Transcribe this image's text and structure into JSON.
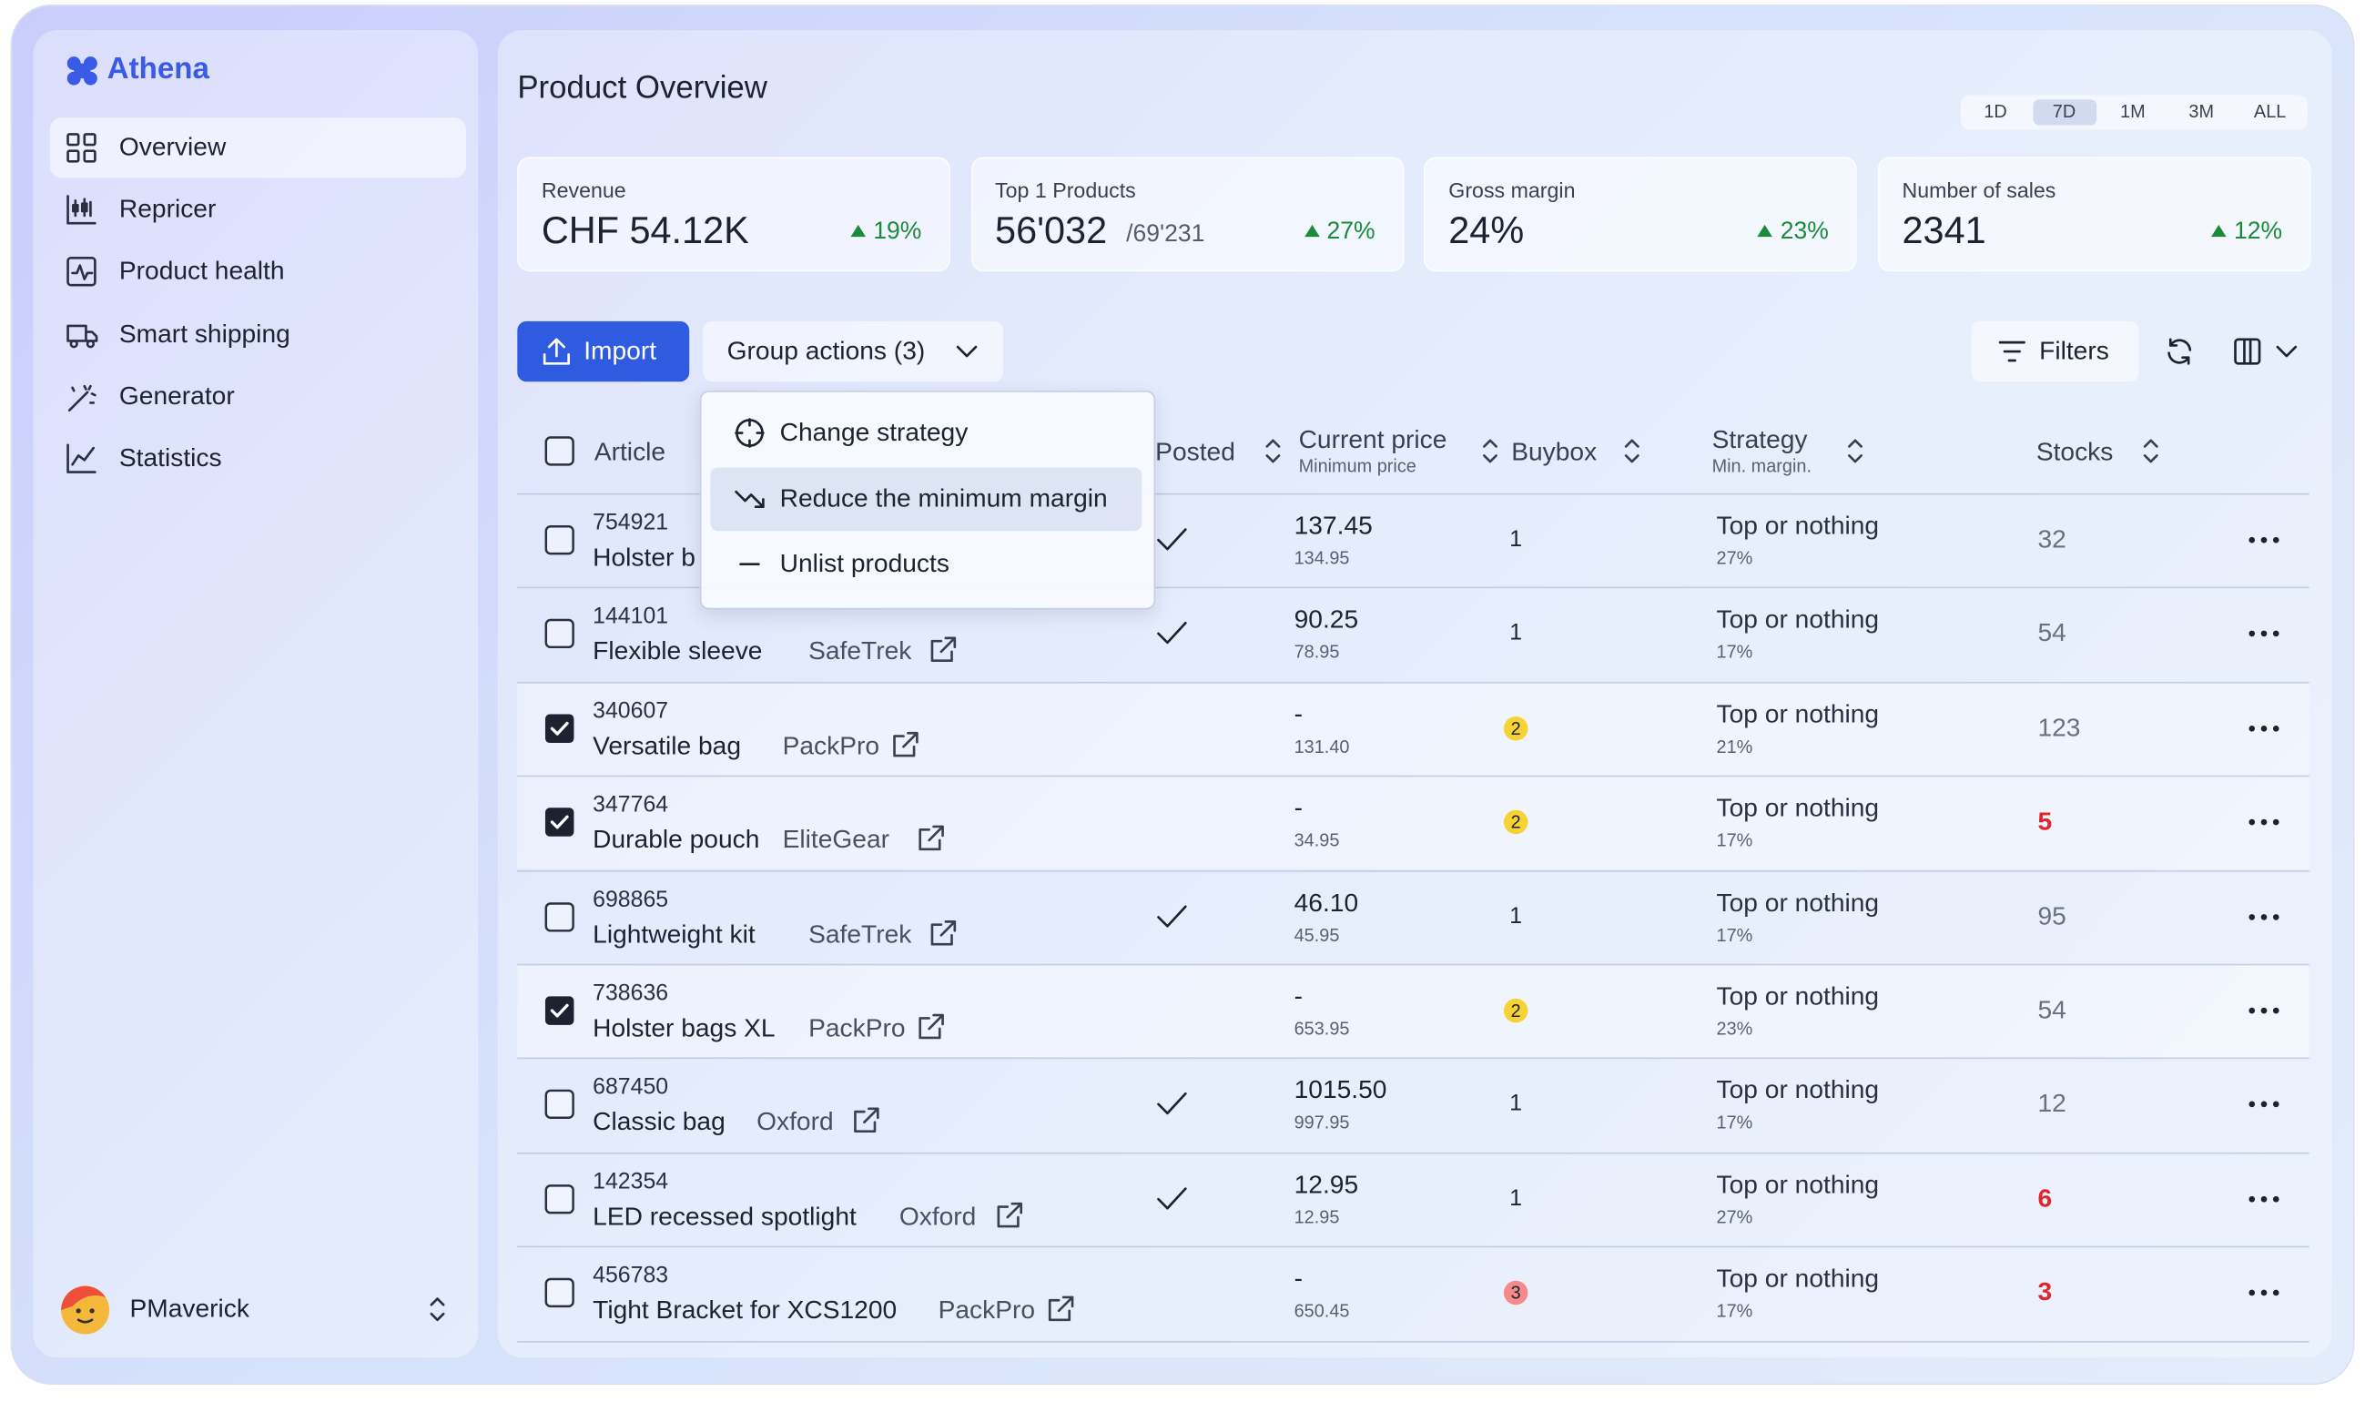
{
  "app": {
    "name": "Athena"
  },
  "nav": [
    {
      "label": "Overview",
      "active": true
    },
    {
      "label": "Repricer"
    },
    {
      "label": "Product health"
    },
    {
      "label": "Smart shipping"
    },
    {
      "label": "Generator"
    },
    {
      "label": "Statistics"
    }
  ],
  "user": {
    "name": "PMaverick"
  },
  "header": {
    "title": "Product Overview",
    "periods": [
      "1D",
      "7D",
      "1M",
      "3M",
      "ALL"
    ],
    "active_period": 1
  },
  "kpis": [
    {
      "label": "Revenue",
      "value": "CHF 54.12K",
      "trend": "19%"
    },
    {
      "label": "Top 1 Products",
      "value": "56'032",
      "suffix": "/69'231",
      "trend": "27%"
    },
    {
      "label": "Gross margin",
      "value": "24%",
      "trend": "23%"
    },
    {
      "label": "Number of sales",
      "value": "2341",
      "trend": "12%"
    }
  ],
  "toolbar": {
    "import": "Import",
    "group_actions": "Group actions (3)",
    "filters": "Filters"
  },
  "menu": {
    "items": [
      "Change strategy",
      "Reduce the minimum margin",
      "Unlist products"
    ],
    "highlighted": 1
  },
  "table": {
    "columns": {
      "article": "Article",
      "posted": "Posted",
      "price": "Current price",
      "price_sub": "Minimum price",
      "buybox": "Buybox",
      "strategy": "Strategy",
      "strategy_sub": "Min. margin.",
      "stocks": "Stocks"
    },
    "rows": [
      {
        "id": "754921",
        "name": "Holster b",
        "posted": true,
        "price": "137.45",
        "min_price": "134.95",
        "buybox": "1",
        "strategy": "Top or nothing",
        "margin": "27%",
        "stocks": "32"
      },
      {
        "id": "144101",
        "name": "Flexible sleeve",
        "brand": "SafeTrek",
        "posted": true,
        "price": "90.25",
        "min_price": "78.95",
        "buybox": "1",
        "strategy": "Top or nothing",
        "margin": "17%",
        "stocks": "54"
      },
      {
        "id": "340607",
        "name": "Versatile bag",
        "brand": "PackPro",
        "selected": true,
        "price": "-",
        "min_price": "131.40",
        "buybox": "2",
        "badge": "#f6d234",
        "strategy": "Top or nothing",
        "margin": "21%",
        "stocks": "123"
      },
      {
        "id": "347764",
        "name": "Durable pouch",
        "brand": "EliteGear",
        "selected": true,
        "price": "-",
        "min_price": "34.95",
        "buybox": "2",
        "badge": "#f6d234",
        "strategy": "Top or nothing",
        "margin": "17%",
        "stocks": "5",
        "alert": true
      },
      {
        "id": "698865",
        "name": "Lightweight kit",
        "brand": "SafeTrek",
        "posted": true,
        "price": "46.10",
        "min_price": "45.95",
        "buybox": "1",
        "strategy": "Top or nothing",
        "margin": "17%",
        "stocks": "95"
      },
      {
        "id": "738636",
        "name": "Holster bags XL",
        "brand": "PackPro",
        "selected": true,
        "price": "-",
        "min_price": "653.95",
        "buybox": "2",
        "badge": "#f6d234",
        "strategy": "Top or nothing",
        "margin": "23%",
        "stocks": "54"
      },
      {
        "id": "687450",
        "name": "Classic bag",
        "brand": "Oxford",
        "posted": true,
        "price": "1015.50",
        "min_price": "997.95",
        "buybox": "1",
        "strategy": "Top or nothing",
        "margin": "17%",
        "stocks": "12"
      },
      {
        "id": "142354",
        "name": "LED recessed spotlight",
        "brand": "Oxford",
        "posted": true,
        "price": "12.95",
        "min_price": "12.95",
        "buybox": "1",
        "strategy": "Top or nothing",
        "margin": "27%",
        "stocks": "6",
        "alert": true
      },
      {
        "id": "456783",
        "name": "Tight Bracket for XCS1200",
        "brand": "PackPro",
        "price": "-",
        "min_price": "650.45",
        "buybox": "3",
        "badge": "#f48a8a",
        "strategy": "Top or nothing",
        "margin": "17%",
        "stocks": "3",
        "alert": true
      }
    ]
  }
}
